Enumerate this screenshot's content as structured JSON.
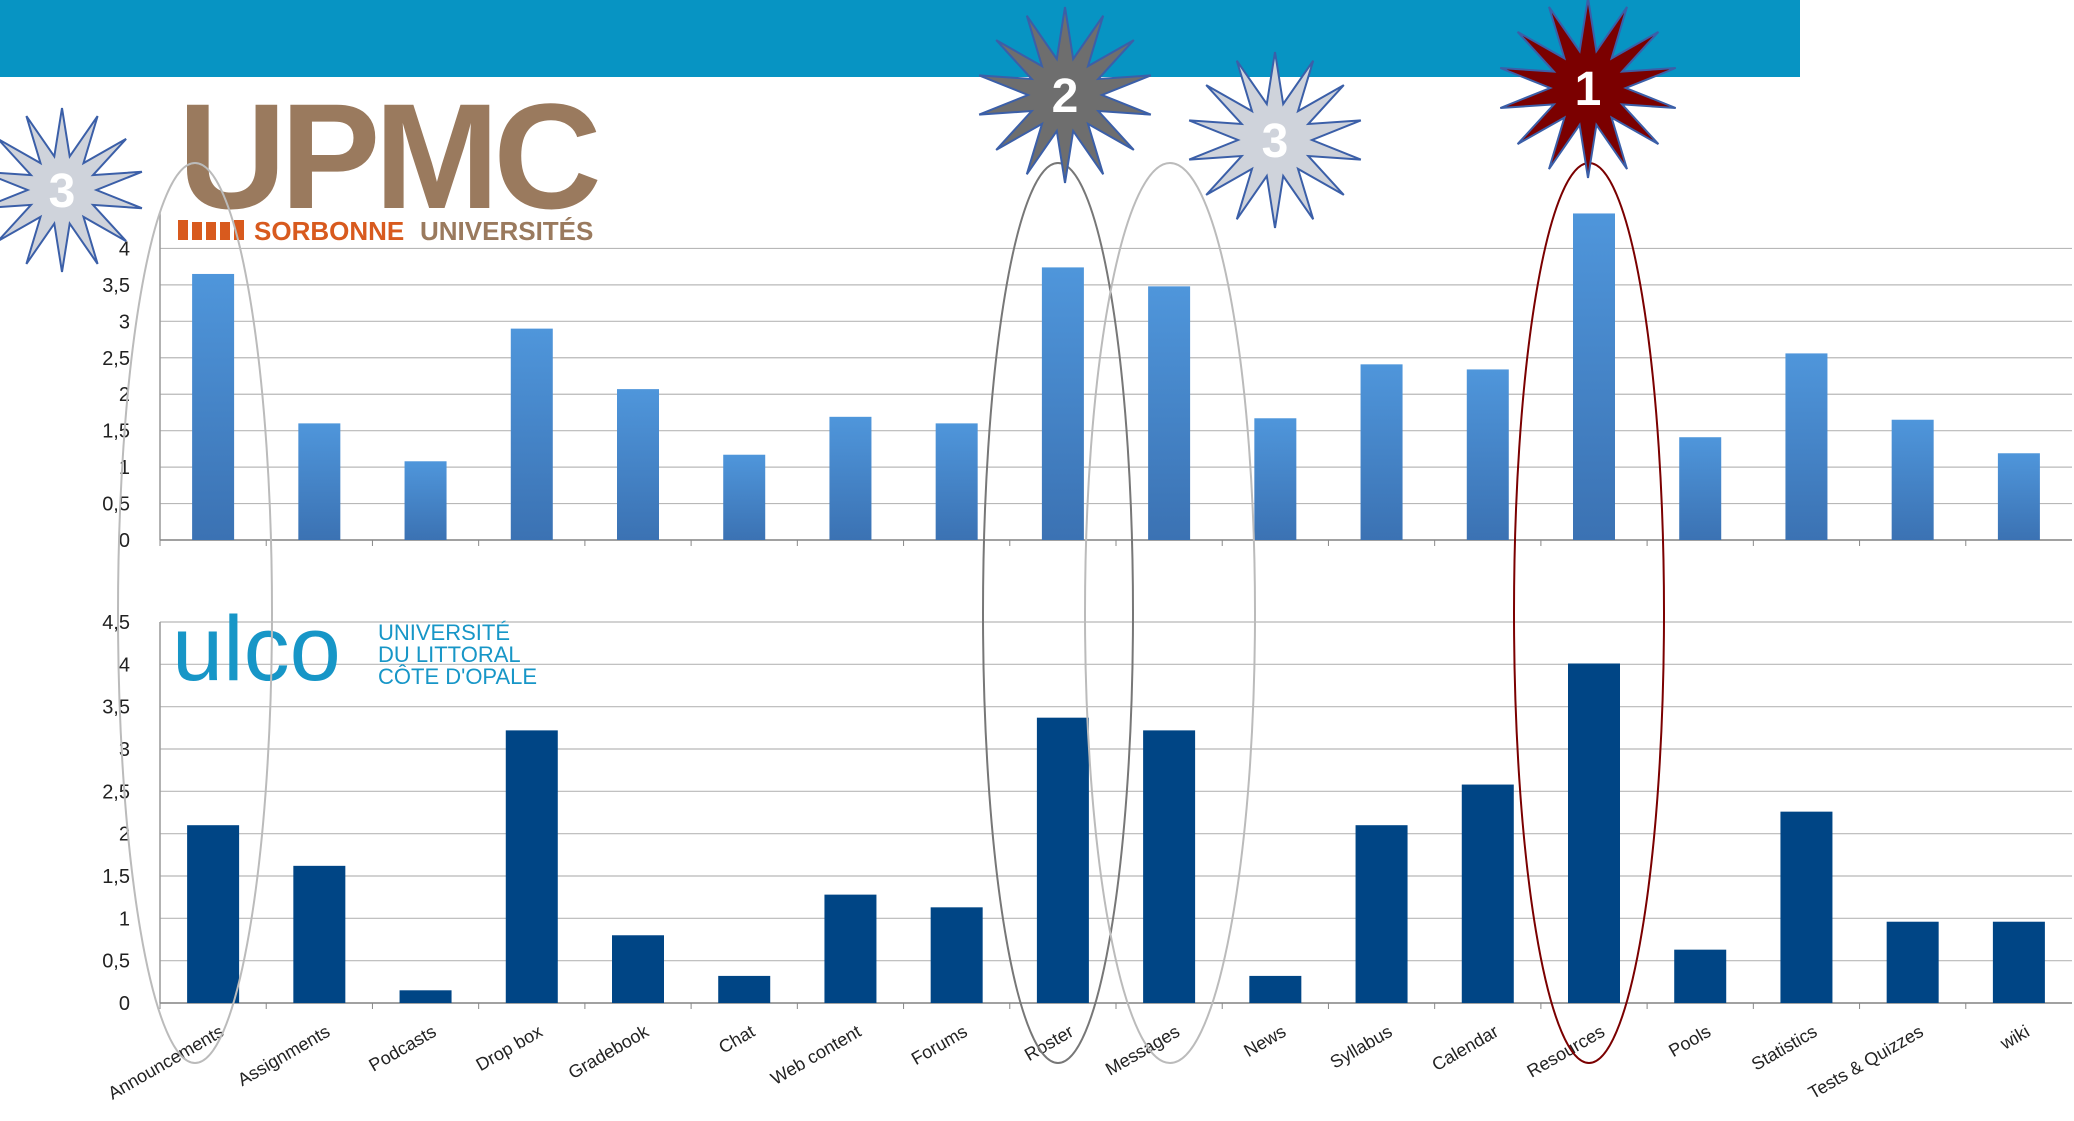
{
  "header": {
    "bar_color": "#0794c3"
  },
  "logos": {
    "upmc": {
      "main": "UPMC",
      "sub_a": "SORBONNE",
      "sub_b": "UNIVERSITÉS",
      "color": "#9a7a5e",
      "accent": "#d85a1e"
    },
    "ulco": {
      "main": "ulco",
      "line1": "UNIVERSITÉ",
      "line2": "DU LITTORAL",
      "line3": "CÔTE D'OPALE",
      "color": "#1796c7"
    }
  },
  "stars": [
    {
      "label": "3",
      "color": "#cfd3db",
      "target": "Announcements"
    },
    {
      "label": "2",
      "color": "#6e6e6e",
      "target": "Roster"
    },
    {
      "label": "3",
      "color": "#cfd3db",
      "target": "Messages"
    },
    {
      "label": "1",
      "color": "#7b0000",
      "target": "Resources"
    }
  ],
  "chart_data": [
    {
      "type": "bar",
      "name": "UPMC",
      "categories": [
        "Announcements",
        "Assignments",
        "Podcasts",
        "Drop box",
        "Gradebook",
        "Chat",
        "Web content",
        "Forums",
        "Roster",
        "Messages",
        "News",
        "Syllabus",
        "Calendar",
        "Resources",
        "Pools",
        "Statistics",
        "Tests & Quizzes",
        "wiki"
      ],
      "values": [
        3.65,
        1.6,
        1.08,
        2.9,
        2.07,
        1.17,
        1.69,
        1.6,
        3.74,
        3.48,
        1.67,
        2.41,
        2.34,
        4.48,
        1.41,
        2.56,
        1.65,
        1.19
      ],
      "ylim": [
        0,
        4.5
      ],
      "yticks": [
        "0",
        "0,5",
        "1",
        "1,5",
        "2",
        "2,5",
        "3",
        "3,5",
        "4"
      ],
      "grid": true,
      "color": "#4a8fd4"
    },
    {
      "type": "bar",
      "name": "ULCO",
      "categories": [
        "Announcements",
        "Assignments",
        "Podcasts",
        "Drop box",
        "Gradebook",
        "Chat",
        "Web content",
        "Forums",
        "Roster",
        "Messages",
        "News",
        "Syllabus",
        "Calendar",
        "Resources",
        "Pools",
        "Statistics",
        "Tests & Quizzes",
        "wiki"
      ],
      "values": [
        2.1,
        1.62,
        0.15,
        3.22,
        0.8,
        0.32,
        1.28,
        1.13,
        3.37,
        3.22,
        0.32,
        2.1,
        2.58,
        4.01,
        0.63,
        2.26,
        0.96,
        0.96
      ],
      "ylim": [
        0,
        4.5
      ],
      "yticks": [
        "0",
        "0,5",
        "1",
        "1,5",
        "2",
        "2,5",
        "3",
        "3,5",
        "4",
        "4,5"
      ],
      "grid": true,
      "color": "#004585"
    }
  ]
}
